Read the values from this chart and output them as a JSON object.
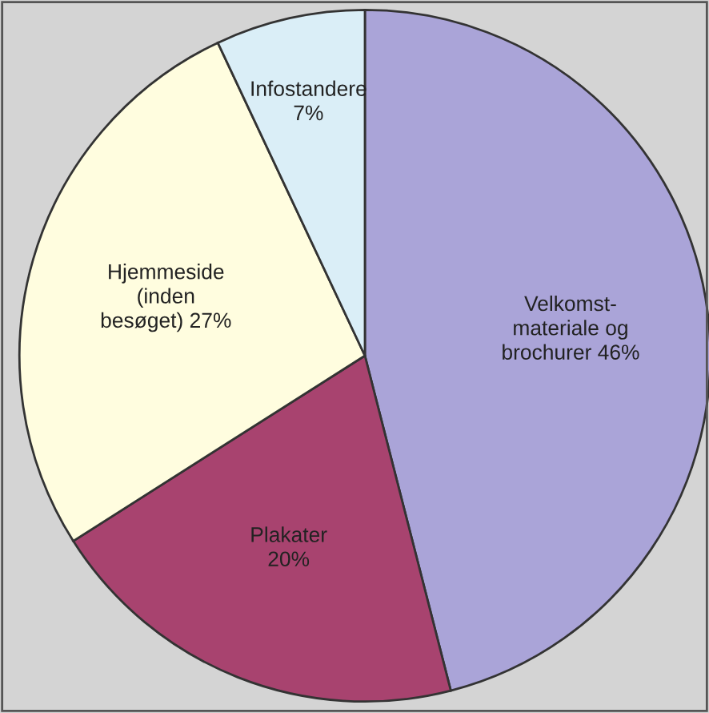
{
  "chart_data": {
    "type": "pie",
    "categories": [
      "Velkomst-\nmateriale og\nbrochurer",
      "Plakater",
      "Hjemmeside\n(inden\nbesøget)",
      "Infostandere"
    ],
    "values": [
      46,
      20,
      27,
      7
    ],
    "value_labels": [
      "46%",
      "20%",
      "27%",
      "7%"
    ],
    "colors": [
      "#aaa4d8",
      "#a8436f",
      "#fffddf",
      "#daeef7"
    ]
  }
}
